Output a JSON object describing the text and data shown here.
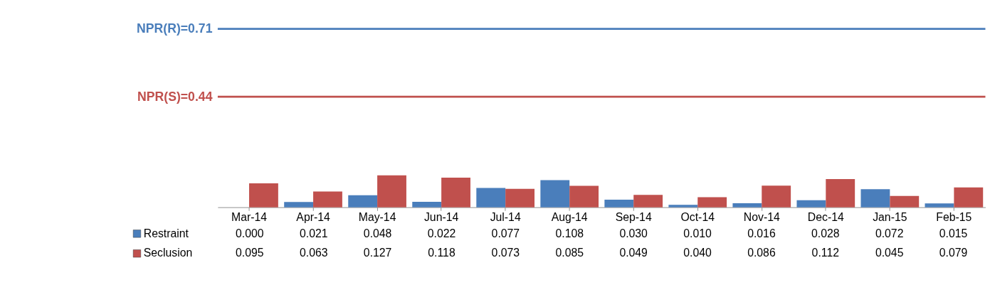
{
  "chart_data": {
    "type": "bar",
    "categories": [
      "Mar-14",
      "Apr-14",
      "May-14",
      "Jun-14",
      "Jul-14",
      "Aug-14",
      "Sep-14",
      "Oct-14",
      "Nov-14",
      "Dec-14",
      "Jan-15",
      "Feb-15"
    ],
    "series": [
      {
        "name": "Restraint",
        "color": "#4a7ebb",
        "values": [
          0.0,
          0.021,
          0.048,
          0.022,
          0.077,
          0.108,
          0.03,
          0.01,
          0.016,
          0.028,
          0.072,
          0.015
        ],
        "value_labels": [
          "0.000",
          "0.021",
          "0.048",
          "0.022",
          "0.077",
          "0.108",
          "0.030",
          "0.010",
          "0.016",
          "0.028",
          "0.072",
          "0.015"
        ]
      },
      {
        "name": "Seclusion",
        "color": "#c0504d",
        "values": [
          0.095,
          0.063,
          0.127,
          0.118,
          0.073,
          0.085,
          0.049,
          0.04,
          0.086,
          0.112,
          0.045,
          0.079
        ],
        "value_labels": [
          "0.095",
          "0.063",
          "0.127",
          "0.118",
          "0.073",
          "0.085",
          "0.049",
          "0.040",
          "0.086",
          "0.112",
          "0.045",
          "0.079"
        ]
      }
    ],
    "ref_lines": [
      {
        "axis": "y",
        "value": 0.71,
        "label": "NPR(R)=0.71",
        "color": "#4a7ebb"
      },
      {
        "axis": "y",
        "value": 0.44,
        "label": "NPR(S)=0.44",
        "color": "#c0504d"
      }
    ],
    "tick_labels": "x",
    "legend": "bottom",
    "grid": false
  }
}
